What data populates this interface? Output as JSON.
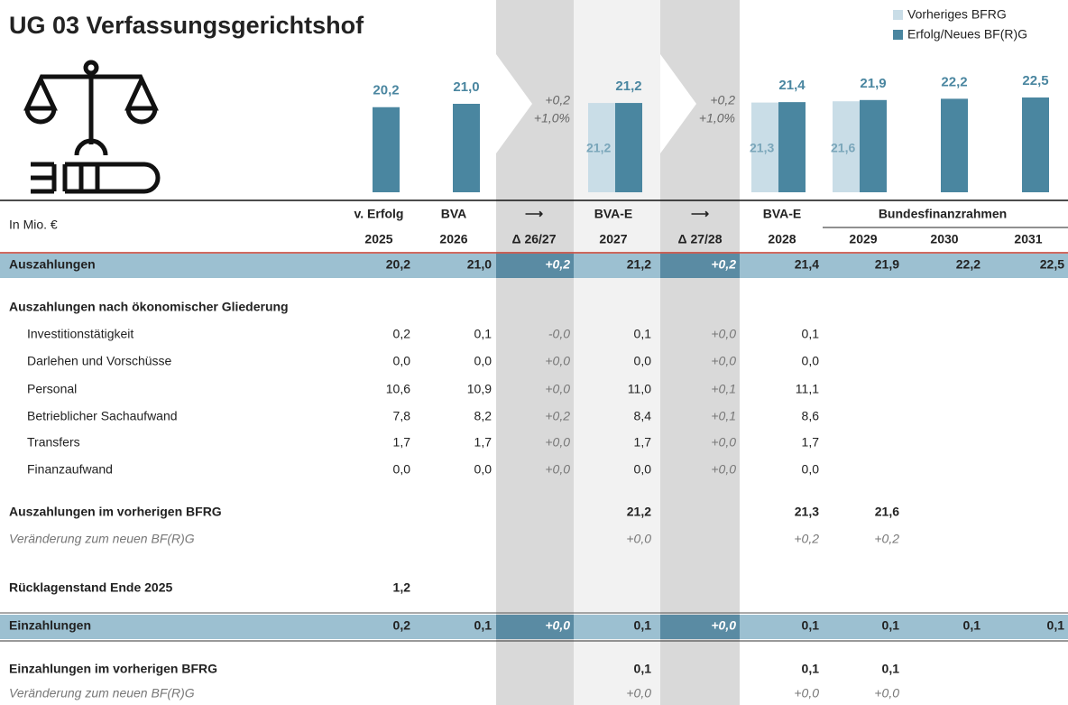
{
  "title": "UG 03 Verfassungsgerichtshof",
  "chart_data": {
    "type": "bar",
    "categories": [
      "2025",
      "2026",
      "2027",
      "2028",
      "2029",
      "2030",
      "2031"
    ],
    "series": [
      {
        "name": "Vorheriges BFRG",
        "color": "#c9dde7",
        "values": [
          null,
          null,
          21.2,
          21.3,
          21.6,
          null,
          null
        ],
        "value_labels": [
          null,
          null,
          "21,2",
          "21,3",
          "21,6",
          null,
          null
        ]
      },
      {
        "name": "Erfolg/Neues BF(R)G",
        "color": "#4a86a0",
        "values": [
          20.2,
          21.0,
          21.2,
          21.4,
          21.9,
          22.2,
          22.5
        ],
        "value_labels": [
          "20,2",
          "21,0",
          "21,2",
          "21,4",
          "21,9",
          "22,2",
          "22,5"
        ]
      }
    ],
    "annotations": [
      {
        "abs": "+0,2",
        "pct": "+1,0%"
      },
      {
        "abs": "+0,2",
        "pct": "+1,0%"
      }
    ]
  },
  "table": {
    "unit": "In Mio. €",
    "header_top": [
      "v. Erfolg",
      "BVA",
      "⟶",
      "BVA-E",
      "⟶",
      "BVA-E"
    ],
    "group_header": "Bundesfinanzrahmen",
    "header_bottom": [
      "2025",
      "2026",
      "Δ 26/27",
      "2027",
      "Δ 27/28",
      "2028",
      "2029",
      "2030",
      "2031"
    ],
    "rows": [
      {
        "label": "Auszahlungen",
        "style": "band",
        "cells": [
          "20,2",
          "21,0",
          "+0,2",
          "21,2",
          "+0,2",
          "21,4",
          "21,9",
          "22,2",
          "22,5"
        ]
      },
      {
        "label": "Auszahlungen nach ökonomischer Gliederung",
        "style": "section",
        "cells": []
      },
      {
        "label": "Investitionstätigkeit",
        "style": "item",
        "cells": [
          "0,2",
          "0,1",
          "-0,0",
          "0,1",
          "+0,0",
          "0,1"
        ]
      },
      {
        "label": "Darlehen und Vorschüsse",
        "style": "item",
        "cells": [
          "0,0",
          "0,0",
          "+0,0",
          "0,0",
          "+0,0",
          "0,0"
        ]
      },
      {
        "label": "Personal",
        "style": "item",
        "cells": [
          "10,6",
          "10,9",
          "+0,0",
          "11,0",
          "+0,1",
          "11,1"
        ]
      },
      {
        "label": "Betrieblicher Sachaufwand",
        "style": "item",
        "cells": [
          "7,8",
          "8,2",
          "+0,2",
          "8,4",
          "+0,1",
          "8,6"
        ]
      },
      {
        "label": "Transfers",
        "style": "item",
        "cells": [
          "1,7",
          "1,7",
          "+0,0",
          "1,7",
          "+0,0",
          "1,7"
        ]
      },
      {
        "label": "Finanzaufwand",
        "style": "item",
        "cells": [
          "0,0",
          "0,0",
          "+0,0",
          "0,0",
          "+0,0",
          "0,0"
        ]
      },
      {
        "label": "Auszahlungen im vorherigen BFRG",
        "style": "bold",
        "cells": [
          null,
          null,
          null,
          "21,2",
          null,
          "21,3",
          "21,6"
        ]
      },
      {
        "label": "Veränderung zum neuen BF(R)G",
        "style": "italic",
        "cells": [
          null,
          null,
          null,
          "+0,0",
          null,
          "+0,2",
          "+0,2"
        ]
      },
      {
        "label": "Rücklagenstand Ende 2025",
        "style": "bold",
        "cells": [
          "1,2"
        ]
      },
      {
        "label": "Einzahlungen",
        "style": "band",
        "cells": [
          "0,2",
          "0,1",
          "+0,0",
          "0,1",
          "+0,0",
          "0,1",
          "0,1",
          "0,1",
          "0,1"
        ]
      },
      {
        "label": "Einzahlungen im vorherigen BFRG",
        "style": "bold",
        "cells": [
          null,
          null,
          null,
          "0,1",
          null,
          "0,1",
          "0,1"
        ]
      },
      {
        "label": "Veränderung zum neuen BF(R)G",
        "style": "italic",
        "cells": [
          null,
          null,
          null,
          "+0,0",
          null,
          "+0,0",
          "+0,0"
        ]
      }
    ]
  }
}
